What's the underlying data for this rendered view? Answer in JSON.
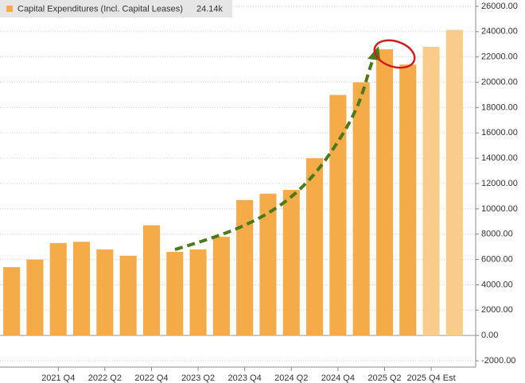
{
  "chart_data": {
    "type": "bar",
    "categories": [
      null,
      null,
      "2021 Q4",
      null,
      "2022 Q2",
      null,
      "2022 Q4",
      null,
      "2023 Q2",
      null,
      "2023 Q4",
      null,
      "2024 Q2",
      null,
      "2024 Q4",
      null,
      "2025 Q2",
      null,
      "2025 Q4 Est",
      null
    ],
    "series": [
      {
        "name": "Capital Expenditures (Incl. Capital Leases)",
        "legend_value_label": "24.14k",
        "values": [
          5400,
          6000,
          7300,
          7400,
          6800,
          6300,
          8700,
          6600,
          6800,
          7800,
          10700,
          11200,
          11500,
          14000,
          19000,
          20000,
          22600,
          21400,
          22800,
          24140
        ],
        "colors": [
          "#f5ac48",
          "#f5ac48",
          "#f5ac48",
          "#f5ac48",
          "#f5ac48",
          "#f5ac48",
          "#f5ac48",
          "#f5ac48",
          "#f5ac48",
          "#f5ac48",
          "#f5ac48",
          "#f5ac48",
          "#f5ac48",
          "#f5ac48",
          "#f5ac48",
          "#f5ac48",
          "#f5ac48",
          "#f5ac48",
          "#f9cc8b",
          "#f9cc8b"
        ]
      }
    ],
    "ylim": [
      -2500,
      26500
    ],
    "yticks": [
      {
        "value": -2000,
        "label": "-2000.00"
      },
      {
        "value": 0,
        "label": "0.00"
      },
      {
        "value": 2000,
        "label": "2000.00"
      },
      {
        "value": 4000,
        "label": "4000.00"
      },
      {
        "value": 6000,
        "label": "6000.00"
      },
      {
        "value": 8000,
        "label": "8000.00"
      },
      {
        "value": 10000,
        "label": "10000.00"
      },
      {
        "value": 12000,
        "label": "12000.00"
      },
      {
        "value": 14000,
        "label": "14000.00"
      },
      {
        "value": 16000,
        "label": "16000.00"
      },
      {
        "value": 18000,
        "label": "18000.00"
      },
      {
        "value": 20000,
        "label": "20000.00"
      },
      {
        "value": 22000,
        "label": "22000.00"
      },
      {
        "value": 24000,
        "label": "24000.00"
      },
      {
        "value": 26000,
        "label": "26000.00"
      }
    ],
    "grid": true
  }
}
